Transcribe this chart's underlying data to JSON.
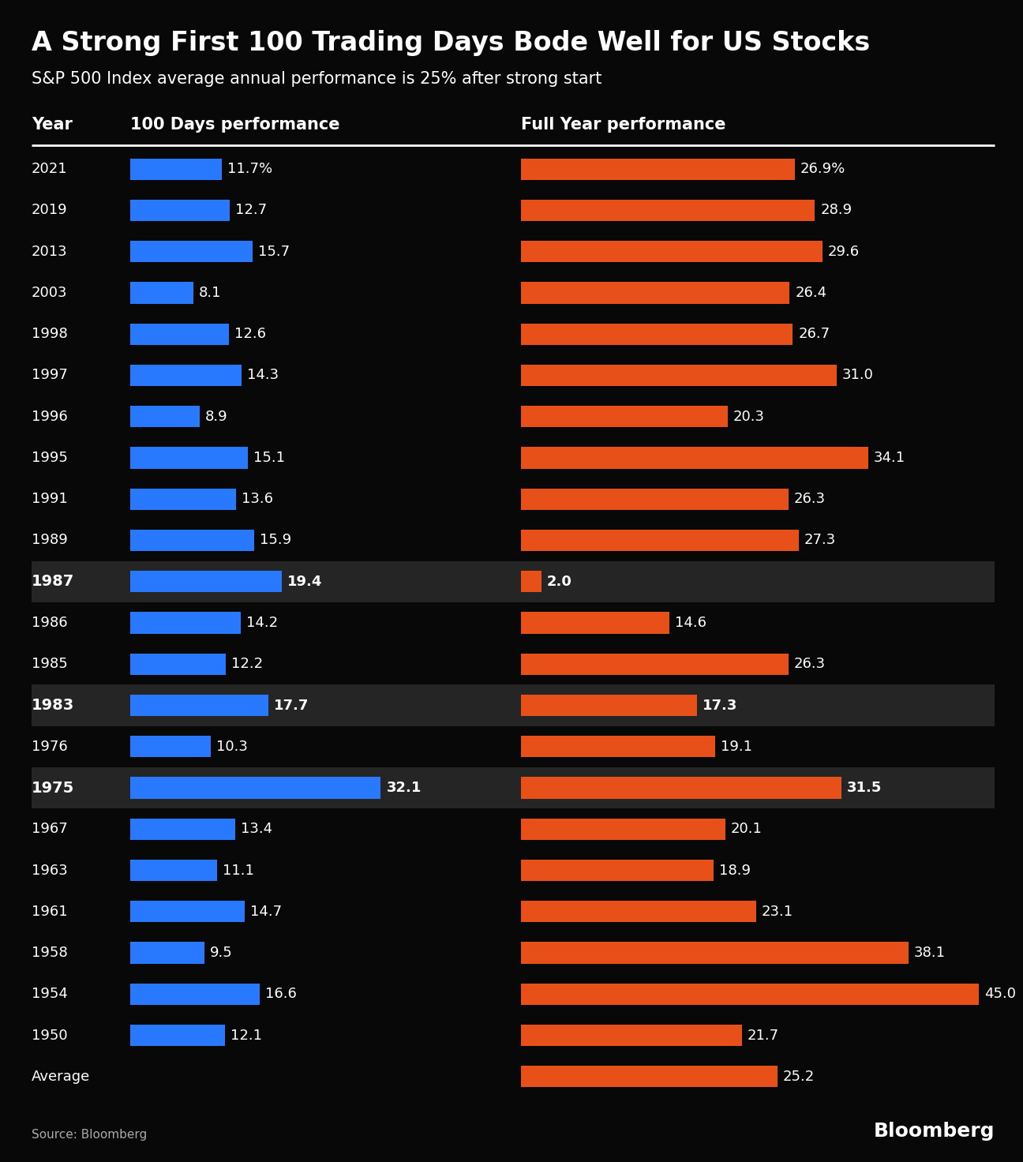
{
  "title": "A Strong First 100 Trading Days Bode Well for US Stocks",
  "subtitle": "S&P 500 Index average annual performance is 25% after strong start",
  "col1_header": "Year",
  "col2_header": "100 Days performance",
  "col3_header": "Full Year performance",
  "source": "Source: Bloomberg",
  "bloomberg_label": "Bloomberg",
  "background_color": "#080808",
  "text_color": "#ffffff",
  "blue_color": "#2979ff",
  "orange_color": "#e8501a",
  "highlight_bg": "#252525",
  "rows": [
    {
      "year": "2021",
      "days100": 11.7,
      "fullyear": 26.9,
      "highlight": false,
      "pct_sign": true
    },
    {
      "year": "2019",
      "days100": 12.7,
      "fullyear": 28.9,
      "highlight": false,
      "pct_sign": false
    },
    {
      "year": "2013",
      "days100": 15.7,
      "fullyear": 29.6,
      "highlight": false,
      "pct_sign": false
    },
    {
      "year": "2003",
      "days100": 8.1,
      "fullyear": 26.4,
      "highlight": false,
      "pct_sign": false
    },
    {
      "year": "1998",
      "days100": 12.6,
      "fullyear": 26.7,
      "highlight": false,
      "pct_sign": false
    },
    {
      "year": "1997",
      "days100": 14.3,
      "fullyear": 31.0,
      "highlight": false,
      "pct_sign": false
    },
    {
      "year": "1996",
      "days100": 8.9,
      "fullyear": 20.3,
      "highlight": false,
      "pct_sign": false
    },
    {
      "year": "1995",
      "days100": 15.1,
      "fullyear": 34.1,
      "highlight": false,
      "pct_sign": false
    },
    {
      "year": "1991",
      "days100": 13.6,
      "fullyear": 26.3,
      "highlight": false,
      "pct_sign": false
    },
    {
      "year": "1989",
      "days100": 15.9,
      "fullyear": 27.3,
      "highlight": false,
      "pct_sign": false
    },
    {
      "year": "1987",
      "days100": 19.4,
      "fullyear": 2.0,
      "highlight": true,
      "pct_sign": false
    },
    {
      "year": "1986",
      "days100": 14.2,
      "fullyear": 14.6,
      "highlight": false,
      "pct_sign": false
    },
    {
      "year": "1985",
      "days100": 12.2,
      "fullyear": 26.3,
      "highlight": false,
      "pct_sign": false
    },
    {
      "year": "1983",
      "days100": 17.7,
      "fullyear": 17.3,
      "highlight": true,
      "pct_sign": false
    },
    {
      "year": "1976",
      "days100": 10.3,
      "fullyear": 19.1,
      "highlight": false,
      "pct_sign": false
    },
    {
      "year": "1975",
      "days100": 32.1,
      "fullyear": 31.5,
      "highlight": true,
      "pct_sign": false
    },
    {
      "year": "1967",
      "days100": 13.4,
      "fullyear": 20.1,
      "highlight": false,
      "pct_sign": false
    },
    {
      "year": "1963",
      "days100": 11.1,
      "fullyear": 18.9,
      "highlight": false,
      "pct_sign": false
    },
    {
      "year": "1961",
      "days100": 14.7,
      "fullyear": 23.1,
      "highlight": false,
      "pct_sign": false
    },
    {
      "year": "1958",
      "days100": 9.5,
      "fullyear": 38.1,
      "highlight": false,
      "pct_sign": false
    },
    {
      "year": "1954",
      "days100": 16.6,
      "fullyear": 45.0,
      "highlight": false,
      "pct_sign": false
    },
    {
      "year": "1950",
      "days100": 12.1,
      "fullyear": 21.7,
      "highlight": false,
      "pct_sign": false
    },
    {
      "year": "Average",
      "days100": null,
      "fullyear": 25.2,
      "highlight": false,
      "pct_sign": false
    }
  ],
  "bar_max": 45.0,
  "title_fontsize": 24,
  "subtitle_fontsize": 15,
  "header_fontsize": 15,
  "label_fontsize": 13,
  "year_fontsize": 13
}
